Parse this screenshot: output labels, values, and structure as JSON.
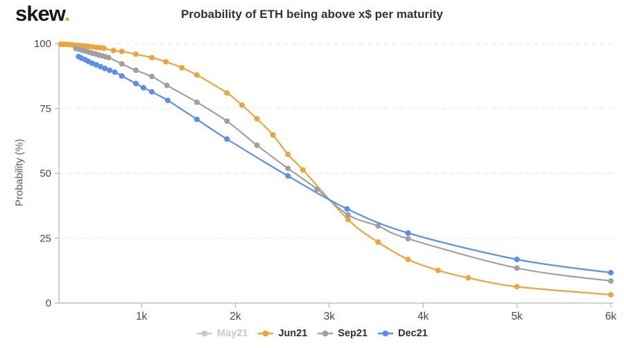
{
  "logo": {
    "text": "skew",
    "dot": "."
  },
  "title": "Probability of ETH being above x$ per maturity",
  "y_axis": {
    "label": "Probability (%)",
    "ticks": [
      "0",
      "25",
      "50",
      "75",
      "100"
    ]
  },
  "x_axis": {
    "ticks": [
      "1k",
      "2k",
      "3k",
      "4k",
      "5k",
      "6k"
    ]
  },
  "colors": {
    "accent_orange": "#E9A63C",
    "series_gray": "#A0A0A0",
    "series_blue": "#5A8DEE",
    "disabled_legend": "#C9C9C9",
    "grid": "#EBEBEB",
    "axis": "#B3B3B3",
    "text_dark": "#2E3338",
    "tick_text": "#44474C"
  },
  "legend": [
    {
      "label": "May21",
      "color": "#C9C9C9",
      "active": false
    },
    {
      "label": "Jun21",
      "color": "#E9A63C",
      "active": true
    },
    {
      "label": "Sep21",
      "color": "#A0A0A0",
      "active": true
    },
    {
      "label": "Dec21",
      "color": "#5A8DEE",
      "active": true
    }
  ],
  "chart_data": {
    "type": "line",
    "title": "Probability of ETH being above x$ per maturity",
    "xlabel": "",
    "ylabel": "Probability (%)",
    "xlim": [
      120,
      6000
    ],
    "ylim": [
      0,
      100
    ],
    "x_ticks": [
      1000,
      2000,
      3000,
      4000,
      5000,
      6000
    ],
    "x_tick_labels": [
      "1k",
      "2k",
      "3k",
      "4k",
      "5k",
      "6k"
    ],
    "y_ticks": [
      0,
      25,
      50,
      75,
      100
    ],
    "grid": "dashed-horizontal",
    "legend_position": "bottom-center",
    "series": [
      {
        "name": "May21",
        "color": "#C9C9C9",
        "visible": false,
        "points": []
      },
      {
        "name": "Jun21",
        "color": "#E9A63C",
        "visible": true,
        "points": [
          [
            140,
            99.8
          ],
          [
            170,
            99.7
          ],
          [
            200,
            99.7
          ],
          [
            230,
            99.6
          ],
          [
            260,
            99.5
          ],
          [
            290,
            99.4
          ],
          [
            320,
            99.3
          ],
          [
            350,
            99.2
          ],
          [
            380,
            99.1
          ],
          [
            410,
            99.0
          ],
          [
            440,
            98.9
          ],
          [
            480,
            98.7
          ],
          [
            520,
            98.5
          ],
          [
            560,
            98.4
          ],
          [
            600,
            98.2
          ],
          [
            700,
            97.3
          ],
          [
            790,
            97.0
          ],
          [
            940,
            95.9
          ],
          [
            1110,
            94.6
          ],
          [
            1260,
            93.0
          ],
          [
            1430,
            90.7
          ],
          [
            1590,
            87.9
          ],
          [
            1910,
            81.0
          ],
          [
            2070,
            76.3
          ],
          [
            2230,
            71.0
          ],
          [
            2400,
            64.8
          ],
          [
            2560,
            57.3
          ],
          [
            2720,
            51.3
          ],
          [
            3200,
            32.2
          ],
          [
            3520,
            23.5
          ],
          [
            3840,
            16.8
          ],
          [
            4160,
            12.6
          ],
          [
            4480,
            9.7
          ],
          [
            5000,
            6.3
          ],
          [
            6000,
            3.2
          ]
        ]
      },
      {
        "name": "Sep21",
        "color": "#A0A0A0",
        "visible": true,
        "points": [
          [
            300,
            98.1
          ],
          [
            335,
            97.8
          ],
          [
            370,
            97.4
          ],
          [
            405,
            97.1
          ],
          [
            440,
            96.7
          ],
          [
            475,
            96.3
          ],
          [
            510,
            96.0
          ],
          [
            545,
            95.6
          ],
          [
            580,
            95.3
          ],
          [
            615,
            94.9
          ],
          [
            650,
            94.6
          ],
          [
            790,
            92.2
          ],
          [
            940,
            89.7
          ],
          [
            1110,
            87.3
          ],
          [
            1270,
            83.9
          ],
          [
            1590,
            77.4
          ],
          [
            1910,
            70.1
          ],
          [
            2230,
            60.8
          ],
          [
            2560,
            51.9
          ],
          [
            2870,
            43.9
          ],
          [
            3200,
            34.0
          ],
          [
            3520,
            29.7
          ],
          [
            3840,
            24.8
          ],
          [
            5000,
            13.5
          ],
          [
            6000,
            8.5
          ]
        ]
      },
      {
        "name": "Dec21",
        "color": "#5A8DEE",
        "visible": true,
        "points": [
          [
            330,
            95.0
          ],
          [
            360,
            94.4
          ],
          [
            400,
            93.8
          ],
          [
            435,
            93.1
          ],
          [
            475,
            92.4
          ],
          [
            520,
            91.8
          ],
          [
            565,
            91.1
          ],
          [
            610,
            90.4
          ],
          [
            660,
            89.7
          ],
          [
            715,
            89.0
          ],
          [
            790,
            87.5
          ],
          [
            940,
            84.6
          ],
          [
            1020,
            83.0
          ],
          [
            1110,
            81.4
          ],
          [
            1280,
            78.1
          ],
          [
            1590,
            70.8
          ],
          [
            1910,
            63.2
          ],
          [
            2560,
            49.0
          ],
          [
            3190,
            36.3
          ],
          [
            3840,
            27.0
          ],
          [
            5000,
            16.8
          ],
          [
            6000,
            11.7
          ]
        ]
      }
    ]
  }
}
